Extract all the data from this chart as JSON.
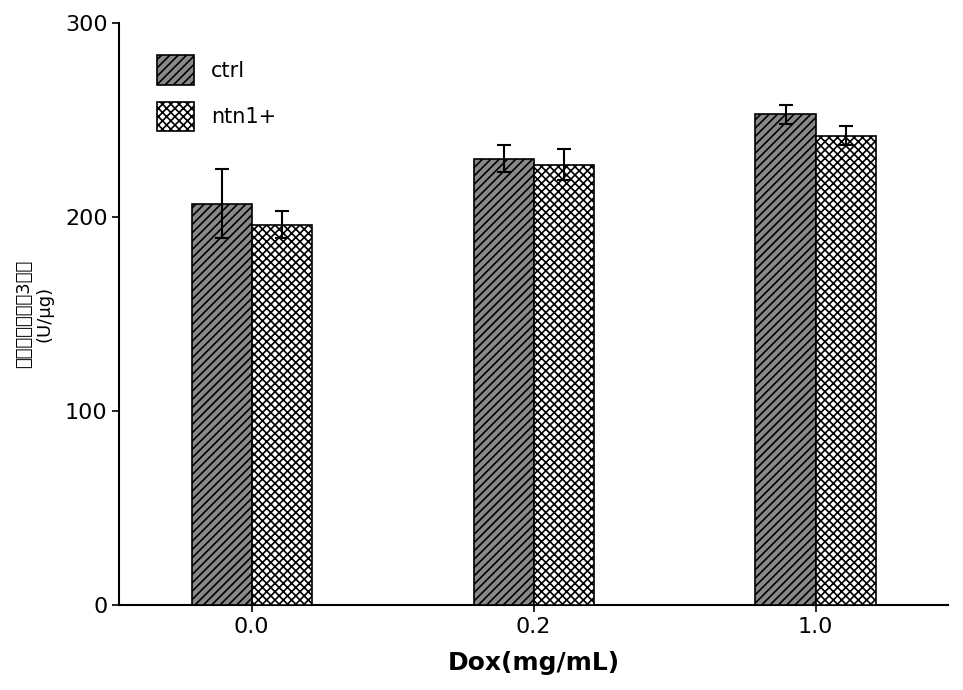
{
  "groups": [
    "0.0",
    "0.2",
    "1.0"
  ],
  "ctrl_values": [
    207,
    230,
    253
  ],
  "ntn1_values": [
    196,
    227,
    242
  ],
  "ctrl_errors": [
    18,
    7,
    5
  ],
  "ntn1_errors": [
    7,
    8,
    5
  ],
  "bar_width": 0.32,
  "group_positions": [
    1.0,
    2.5,
    4.0
  ],
  "ylim": [
    0,
    300
  ],
  "yticks": [
    0,
    100,
    200,
    300
  ],
  "xlabel": "Dox(mg/mL)",
  "ylabel": "细胞凋亡蛋白酶3活性\n(U/μg)",
  "legend_labels": [
    "ctrl",
    "ntn1+"
  ],
  "ctrl_hatch": "////",
  "ntn1_hatch": "XXXX",
  "ctrl_color": "#888888",
  "ntn1_color": "#ffffff",
  "edge_color": "#000000",
  "background_color": "#ffffff",
  "figsize": [
    9.63,
    6.9
  ],
  "dpi": 100
}
